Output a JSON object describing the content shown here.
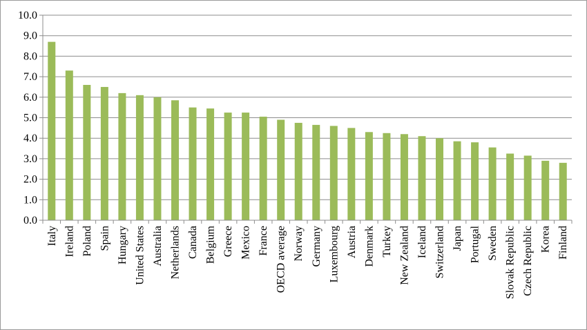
{
  "chart_data": {
    "type": "bar",
    "categories": [
      "Italy",
      "Ireland",
      "Poland",
      "Spain",
      "Hungary",
      "United States",
      "Australia",
      "Netherlands",
      "Canada",
      "Belgium",
      "Greece",
      "Mexico",
      "France",
      "OECD average",
      "Norway",
      "Germany",
      "Luxembourg",
      "Austria",
      "Denmark",
      "Turkey",
      "New Zealand",
      "Iceland",
      "Switzerland",
      "Japan",
      "Portugal",
      "Sweden",
      "Slovak Republic",
      "Czech Republic",
      "Korea",
      "Finland"
    ],
    "values": [
      8.7,
      7.3,
      6.6,
      6.5,
      6.2,
      6.1,
      6.0,
      5.85,
      5.5,
      5.45,
      5.25,
      5.25,
      5.05,
      4.9,
      4.75,
      4.65,
      4.6,
      4.5,
      4.3,
      4.25,
      4.2,
      4.1,
      4.0,
      3.85,
      3.8,
      3.55,
      3.25,
      3.15,
      2.9,
      2.8
    ],
    "color": "#9bbb59",
    "ylim": [
      0,
      10
    ],
    "yticks": [
      {
        "value": 0,
        "label": "0.0"
      },
      {
        "value": 1,
        "label": "1.0"
      },
      {
        "value": 2,
        "label": "2.0"
      },
      {
        "value": 3,
        "label": "3.0"
      },
      {
        "value": 4,
        "label": "4.0"
      },
      {
        "value": 5,
        "label": "5.0"
      },
      {
        "value": 6,
        "label": "6.0"
      },
      {
        "value": 7,
        "label": "7.0"
      },
      {
        "value": 8,
        "label": "8.0"
      },
      {
        "value": 9,
        "label": "9.0"
      },
      {
        "value": 10,
        "label": "10.0"
      }
    ],
    "grid": true
  }
}
